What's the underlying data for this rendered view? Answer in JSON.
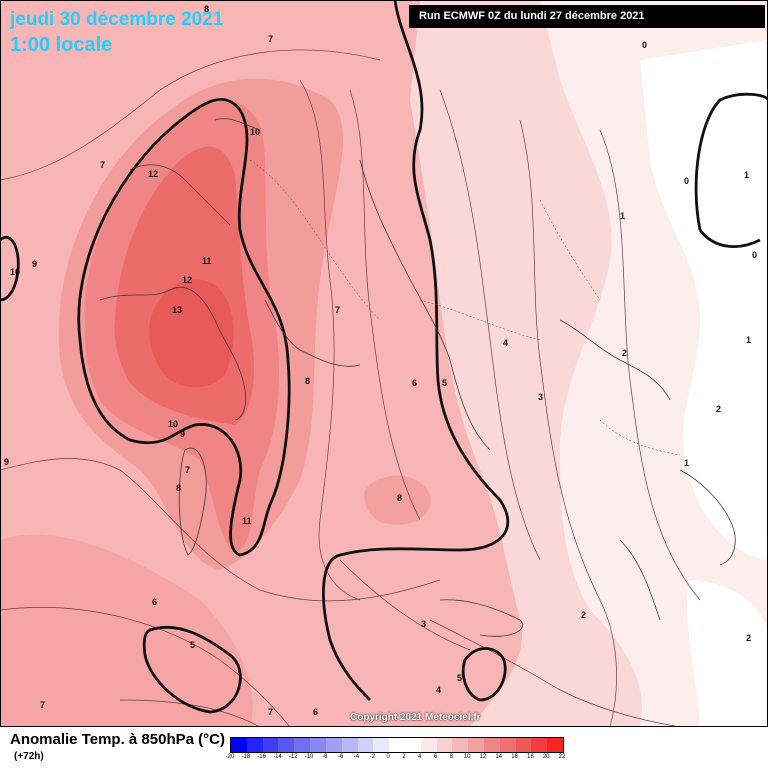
{
  "header": {
    "date": "jeudi 30 décembre 2021",
    "time": "1:00 locale",
    "run": "Run ECMWF 0Z du lundi 27 décembre 2021"
  },
  "footer": {
    "variable": "Anomalie Temp. à 850hPa (°C)",
    "lead": "(+72h)",
    "copyright": "Copyright 2021 Meteociel.fr"
  },
  "colors": {
    "frame": "#000000",
    "title_cyan": "#22d0ff",
    "background_warm": "#f7b3b3",
    "warm_core": "#f06060"
  },
  "legend": {
    "values": [
      -20,
      -18,
      -16,
      -14,
      -12,
      -10,
      -8,
      -6,
      -4,
      -2,
      0,
      2,
      4,
      6,
      8,
      10,
      12,
      14,
      16,
      18,
      20,
      22
    ],
    "colors": [
      "#0000ff",
      "#2424f6",
      "#3f3ff0",
      "#5858ee",
      "#7070ee",
      "#8888ee",
      "#a0a0f2",
      "#b8b8f4",
      "#d0d0f8",
      "#e8e8fc",
      "#ffffff",
      "#ffffff",
      "#fce8e8",
      "#f8d0d0",
      "#f4b8b8",
      "#f2a0a0",
      "#ee8888",
      "#ee7070",
      "#ee5858",
      "#f03f3f",
      "#f62424",
      "#ff0000"
    ]
  },
  "contour_labels": [
    {
      "text": "8"
    },
    {
      "text": "7"
    },
    {
      "text": "0"
    },
    {
      "text": "10"
    },
    {
      "text": "12"
    },
    {
      "text": "7"
    },
    {
      "text": "10"
    },
    {
      "text": "9"
    },
    {
      "text": "11"
    },
    {
      "text": "12"
    },
    {
      "text": "13"
    },
    {
      "text": "7"
    },
    {
      "text": "8"
    },
    {
      "text": "6"
    },
    {
      "text": "5"
    },
    {
      "text": "4"
    },
    {
      "text": "3"
    },
    {
      "text": "1"
    },
    {
      "text": "0"
    },
    {
      "text": "1"
    },
    {
      "text": "0"
    },
    {
      "text": "2"
    },
    {
      "text": "1"
    },
    {
      "text": "2"
    },
    {
      "text": "1"
    },
    {
      "text": "10"
    },
    {
      "text": "9"
    },
    {
      "text": "7"
    },
    {
      "text": "8"
    },
    {
      "text": "9"
    },
    {
      "text": "11"
    },
    {
      "text": "8"
    },
    {
      "text": "6"
    },
    {
      "text": "5"
    },
    {
      "text": "3"
    },
    {
      "text": "4"
    },
    {
      "text": "5"
    },
    {
      "text": "2"
    },
    {
      "text": "2"
    },
    {
      "text": "7"
    },
    {
      "text": "7"
    },
    {
      "text": "6"
    }
  ]
}
